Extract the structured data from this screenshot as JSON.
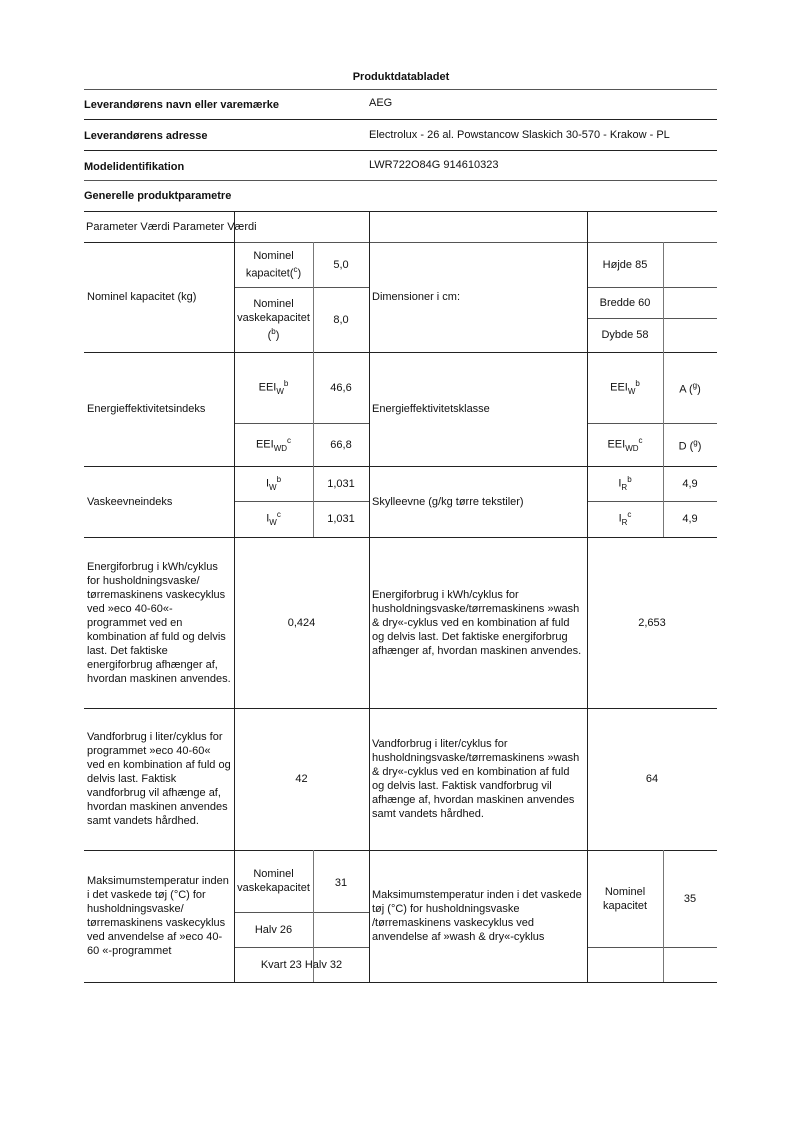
{
  "title": "Produktdatabladet",
  "info": [
    {
      "label": "Leverandørens navn eller varemærke",
      "value": "AEG"
    },
    {
      "label": "Leverandørens adresse",
      "value": "Electrolux - 26 al. Powstancow Slaskich 30-570 - Krakow - PL"
    },
    {
      "label": "Modelidentifikation",
      "value": "LWR722O84G 914610323"
    }
  ],
  "section": "Generelle produktparametre",
  "header": "Parameter Værdi Parameter Værdi",
  "capacity": {
    "label": "Nominel kapacitet (kg)",
    "sub1_a": "Nominel",
    "sub1_b": "kapacitet(",
    "sub1_sup": "c",
    "sub1_c": ")",
    "val1": "5,0",
    "sub2_a": "Nominel",
    "sub2_b": "vaskekapacitet",
    "sub2_c": "(",
    "sub2_sup": "b",
    "sub2_d": ")",
    "val2": "8,0"
  },
  "dimensions": {
    "label": "Dimensioner i cm:",
    "height": "Højde 85",
    "width": "Bredde 60",
    "depth": "Dybde 58"
  },
  "eei": {
    "label": "Energieffektivitetsindeks",
    "sym": "EEI",
    "sub1": "W",
    "sup1": "b",
    "val1": "46,6",
    "sub2": "WD",
    "sup2": "c",
    "val2": "66,8"
  },
  "eec": {
    "label": "Energieffektivitetsklasse",
    "sym": "EEI",
    "sub1": "W",
    "sup1": "b",
    "val1": "A (",
    "sup_val1": "g",
    "sub2": "WD",
    "sup2": "c",
    "val2": "D (",
    "sup_val2": "g"
  },
  "washing": {
    "label": "Vaskeevneindeks",
    "sym": "I",
    "sub1": "W",
    "sup1": "b",
    "val1": "1,031",
    "sub2": "W",
    "sup2": "c",
    "val2": "1,031"
  },
  "rinsing": {
    "label": "Skylleevne (g/kg tørre tekstiler)",
    "sym": "I",
    "sub1": "R",
    "sup1": "b",
    "val1": "4,9",
    "sub2": "R",
    "sup2": "c",
    "val2": "4,9"
  },
  "energy": {
    "label_left": "Energiforbrug i kWh/cyklus for husholdningsvaske/ tørremaskinens vaskecyklus ved »eco 40-60«-programmet ved en kombination af fuld og delvis last. Det faktiske energiforbrug afhænger af, hvordan maskinen anvendes.",
    "value_left": "0,424",
    "label_right": "Energiforbrug i kWh/cyklus for husholdningsvaske/tørremaskinens »wash & dry«-cyklus ved en kombination af fuld og delvis last. Det faktiske energiforbrug afhænger af, hvordan maskinen anvendes.",
    "value_right": "2,653"
  },
  "water": {
    "label_left": "Vandforbrug i liter/cyklus for programmet »eco 40-60« ved en kombination af fuld og delvis last. Faktisk vandforbrug vil afhænge af, hvordan maskinen anvendes samt vandets hårdhed.",
    "value_left": "42",
    "label_right": "Vandforbrug i liter/cyklus for husholdningsvaske/tørremaskinens »wash & dry«-cyklus ved en kombination af fuld og delvis last. Faktisk vandforbrug vil afhænge af, hvordan maskinen anvendes samt vandets hårdhed.",
    "value_right": "64"
  },
  "temp": {
    "label_left": "Maksimumstemperatur inden i det vaskede tøj (°C) for husholdningsvaske/ tørremaskinens vaskecyklus ved anvendelse af »eco 40-60 «-programmet",
    "sub1": "Nominel vaskekapacitet",
    "val1": "31",
    "sub2": "Halv 26",
    "sub3": "Kvart 23 Halv 32",
    "label_right": "Maksimumstemperatur inden i det vaskede tøj (°C) for husholdningsvaske /tørremaskinens vaskecyklus ved anvendelse af »wash & dry«-cyklus",
    "sub_right": "Nominel kapacitet",
    "val_right": "35"
  }
}
